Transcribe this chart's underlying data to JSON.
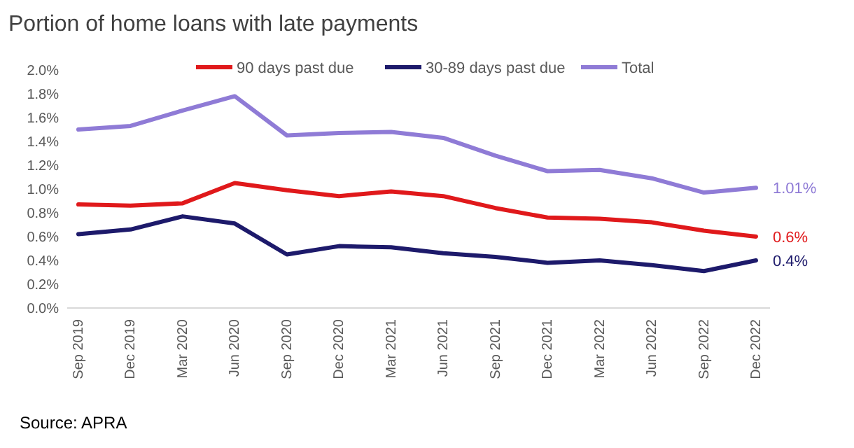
{
  "chart_data": {
    "type": "line",
    "title": "Portion of home loans with late payments",
    "categories": [
      "Sep 2019",
      "Dec 2019",
      "Mar 2020",
      "Jun 2020",
      "Sep 2020",
      "Dec 2020",
      "Mar 2021",
      "Jun 2021",
      "Sep 2021",
      "Dec 2021",
      "Mar 2022",
      "Jun 2022",
      "Sep 2022",
      "Dec 2022"
    ],
    "series": [
      {
        "name": "90 days past due",
        "color": "#e0191b",
        "values": [
          0.87,
          0.86,
          0.88,
          1.05,
          0.99,
          0.94,
          0.98,
          0.94,
          0.84,
          0.76,
          0.75,
          0.72,
          0.65,
          0.6
        ],
        "value_labels": [
          null,
          null,
          null,
          null,
          null,
          null,
          null,
          null,
          null,
          null,
          null,
          null,
          null,
          "0.6%"
        ]
      },
      {
        "name": "30-89 days past due",
        "color": "#1d1a6b",
        "values": [
          0.62,
          0.66,
          0.77,
          0.71,
          0.45,
          0.52,
          0.51,
          0.46,
          0.43,
          0.38,
          0.4,
          0.36,
          0.31,
          0.4
        ],
        "value_labels": [
          null,
          null,
          null,
          null,
          null,
          null,
          null,
          null,
          null,
          null,
          null,
          null,
          null,
          "0.4%"
        ]
      },
      {
        "name": "Total",
        "color": "#8f7bd6",
        "values": [
          1.5,
          1.53,
          1.66,
          1.78,
          1.45,
          1.47,
          1.48,
          1.43,
          1.28,
          1.15,
          1.16,
          1.09,
          0.97,
          1.01
        ],
        "value_labels": [
          null,
          null,
          null,
          null,
          null,
          null,
          null,
          null,
          null,
          null,
          null,
          null,
          null,
          "1.01%"
        ]
      }
    ],
    "ylim": [
      0,
      2
    ],
    "yticks": [
      {
        "value": 0,
        "label": "0.0%"
      },
      {
        "value": 0.2,
        "label": "0.2%"
      },
      {
        "value": 0.4,
        "label": "0.4%"
      },
      {
        "value": 0.6,
        "label": "0.6%"
      },
      {
        "value": 0.8,
        "label": "0.8%"
      },
      {
        "value": 1,
        "label": "1.0%"
      },
      {
        "value": 1.2,
        "label": "1.2%"
      },
      {
        "value": 1.4,
        "label": "1.4%"
      },
      {
        "value": 1.6,
        "label": "1.6%"
      },
      {
        "value": 1.8,
        "label": "1.8%"
      },
      {
        "value": 2,
        "label": "2.0%"
      }
    ],
    "legend": "top",
    "grid": false,
    "marker": "none",
    "line_style": "solid",
    "annotations": [
      "Source: APRA"
    ]
  }
}
